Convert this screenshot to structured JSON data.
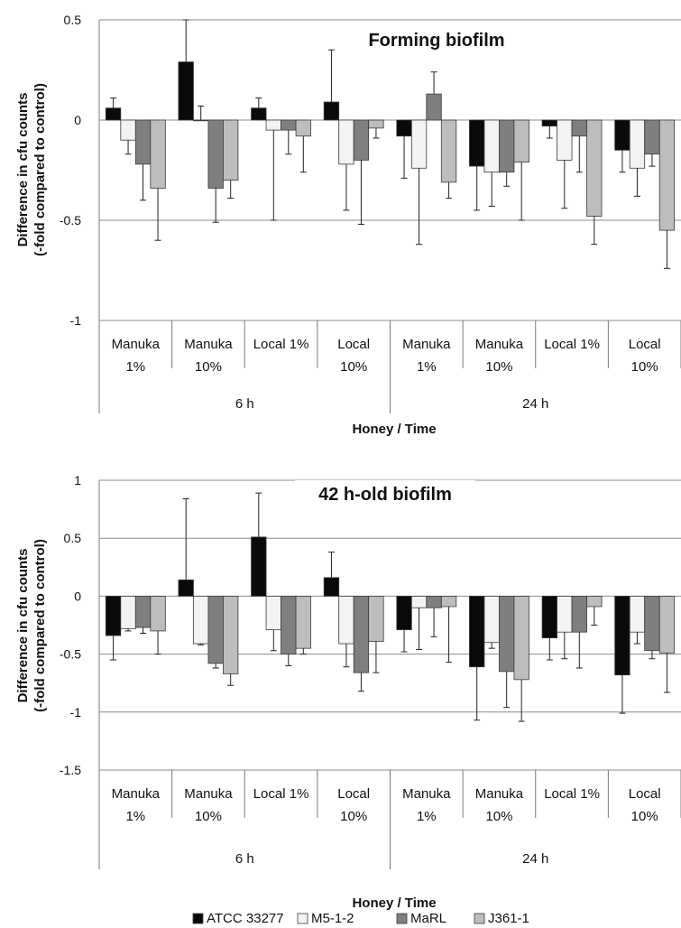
{
  "colors": {
    "ATCC 33277": "#0a0a0a",
    "M5-1-2": "#f3f3f3",
    "MaRL": "#7f7f7f",
    "J361-1": "#bdbdbd",
    "grid": "#8c8c8c",
    "axis": "#7a7a7a"
  },
  "legend": {
    "placement": "bottom-center",
    "entries": [
      "ATCC 33277",
      "M5-1-2",
      "MaRL",
      "J361-1"
    ]
  },
  "chart_data": [
    {
      "type": "bar",
      "title": "Forming biofilm",
      "ylabel_line1": "Difference in cfu counts",
      "ylabel_line2": "(-fold compared to control)",
      "xlabel": "Honey / Time",
      "ylim": [
        -1,
        0.5
      ],
      "yticks": [
        0.5,
        0,
        -0.5,
        -1
      ],
      "ytick_labels": [
        "0.5",
        "0",
        "-0.5",
        "-1"
      ],
      "grid": true,
      "categories": [
        [
          "Manuka",
          "1%"
        ],
        [
          "Manuka",
          "10%"
        ],
        [
          "Local 1%"
        ],
        [
          "Local",
          "10%"
        ],
        [
          "Manuka",
          "1%"
        ],
        [
          "Manuka",
          "10%"
        ],
        [
          "Local 1%"
        ],
        [
          "Local",
          "10%"
        ]
      ],
      "groups": [
        "6 h",
        "24 h"
      ],
      "series": [
        {
          "name": "ATCC 33277",
          "values": [
            0.06,
            0.29,
            0.06,
            0.09,
            -0.08,
            -0.23,
            -0.03,
            -0.15
          ],
          "errors": [
            0.05,
            0.21,
            0.05,
            0.26,
            0.21,
            0.22,
            0.06,
            0.11
          ]
        },
        {
          "name": "M5-1-2",
          "values": [
            -0.1,
            0.0,
            -0.05,
            -0.22,
            -0.24,
            -0.26,
            -0.2,
            -0.24
          ],
          "errors": [
            0.07,
            0.07,
            0.45,
            0.23,
            0.38,
            0.17,
            0.24,
            0.14
          ]
        },
        {
          "name": "MaRL",
          "values": [
            -0.22,
            -0.34,
            -0.05,
            -0.2,
            0.13,
            -0.26,
            -0.08,
            -0.17
          ],
          "errors": [
            0.18,
            0.17,
            0.12,
            0.32,
            0.11,
            0.07,
            0.18,
            0.06
          ]
        },
        {
          "name": "J361-1",
          "values": [
            -0.34,
            -0.3,
            -0.08,
            -0.04,
            -0.31,
            -0.21,
            -0.48,
            -0.55
          ],
          "errors": [
            0.26,
            0.09,
            0.18,
            0.05,
            0.08,
            0.29,
            0.14,
            0.19
          ]
        }
      ]
    },
    {
      "type": "bar",
      "title": "42 h-old biofilm",
      "ylabel_line1": "Difference in cfu counts",
      "ylabel_line2": "(-fold compared to control)",
      "xlabel": "Honey / Time",
      "ylim": [
        -1.5,
        1
      ],
      "yticks": [
        1,
        0.5,
        0,
        -0.5,
        -1,
        -1.5
      ],
      "ytick_labels": [
        "1",
        "0.5",
        "0",
        "-0.5",
        "-1",
        "-1.5"
      ],
      "grid": true,
      "categories": [
        [
          "Manuka",
          "1%"
        ],
        [
          "Manuka",
          "10%"
        ],
        [
          "Local 1%"
        ],
        [
          "Local",
          "10%"
        ],
        [
          "Manuka",
          "1%"
        ],
        [
          "Manuka",
          "10%"
        ],
        [
          "Local 1%"
        ],
        [
          "Local",
          "10%"
        ]
      ],
      "groups": [
        "6 h",
        "24 h"
      ],
      "series": [
        {
          "name": "ATCC 33277",
          "values": [
            -0.34,
            0.14,
            0.51,
            0.16,
            -0.29,
            -0.61,
            -0.36,
            -0.68
          ],
          "errors": [
            0.21,
            0.7,
            0.38,
            0.22,
            0.19,
            0.46,
            0.19,
            0.33
          ]
        },
        {
          "name": "M5-1-2",
          "values": [
            -0.28,
            -0.41,
            -0.29,
            -0.41,
            -0.1,
            -0.4,
            -0.31,
            -0.31
          ],
          "errors": [
            0.02,
            0.01,
            0.18,
            0.2,
            0.36,
            0.05,
            0.23,
            0.1
          ]
        },
        {
          "name": "MaRL",
          "values": [
            -0.27,
            -0.58,
            -0.5,
            -0.66,
            -0.1,
            -0.65,
            -0.31,
            -0.47
          ],
          "errors": [
            0.05,
            0.04,
            0.1,
            0.16,
            0.25,
            0.31,
            0.31,
            0.07
          ]
        },
        {
          "name": "J361-1",
          "values": [
            -0.3,
            -0.67,
            -0.45,
            -0.39,
            -0.09,
            -0.72,
            -0.09,
            -0.49
          ],
          "errors": [
            0.2,
            0.1,
            0.05,
            0.27,
            0.48,
            0.36,
            0.16,
            0.34
          ]
        }
      ]
    }
  ]
}
